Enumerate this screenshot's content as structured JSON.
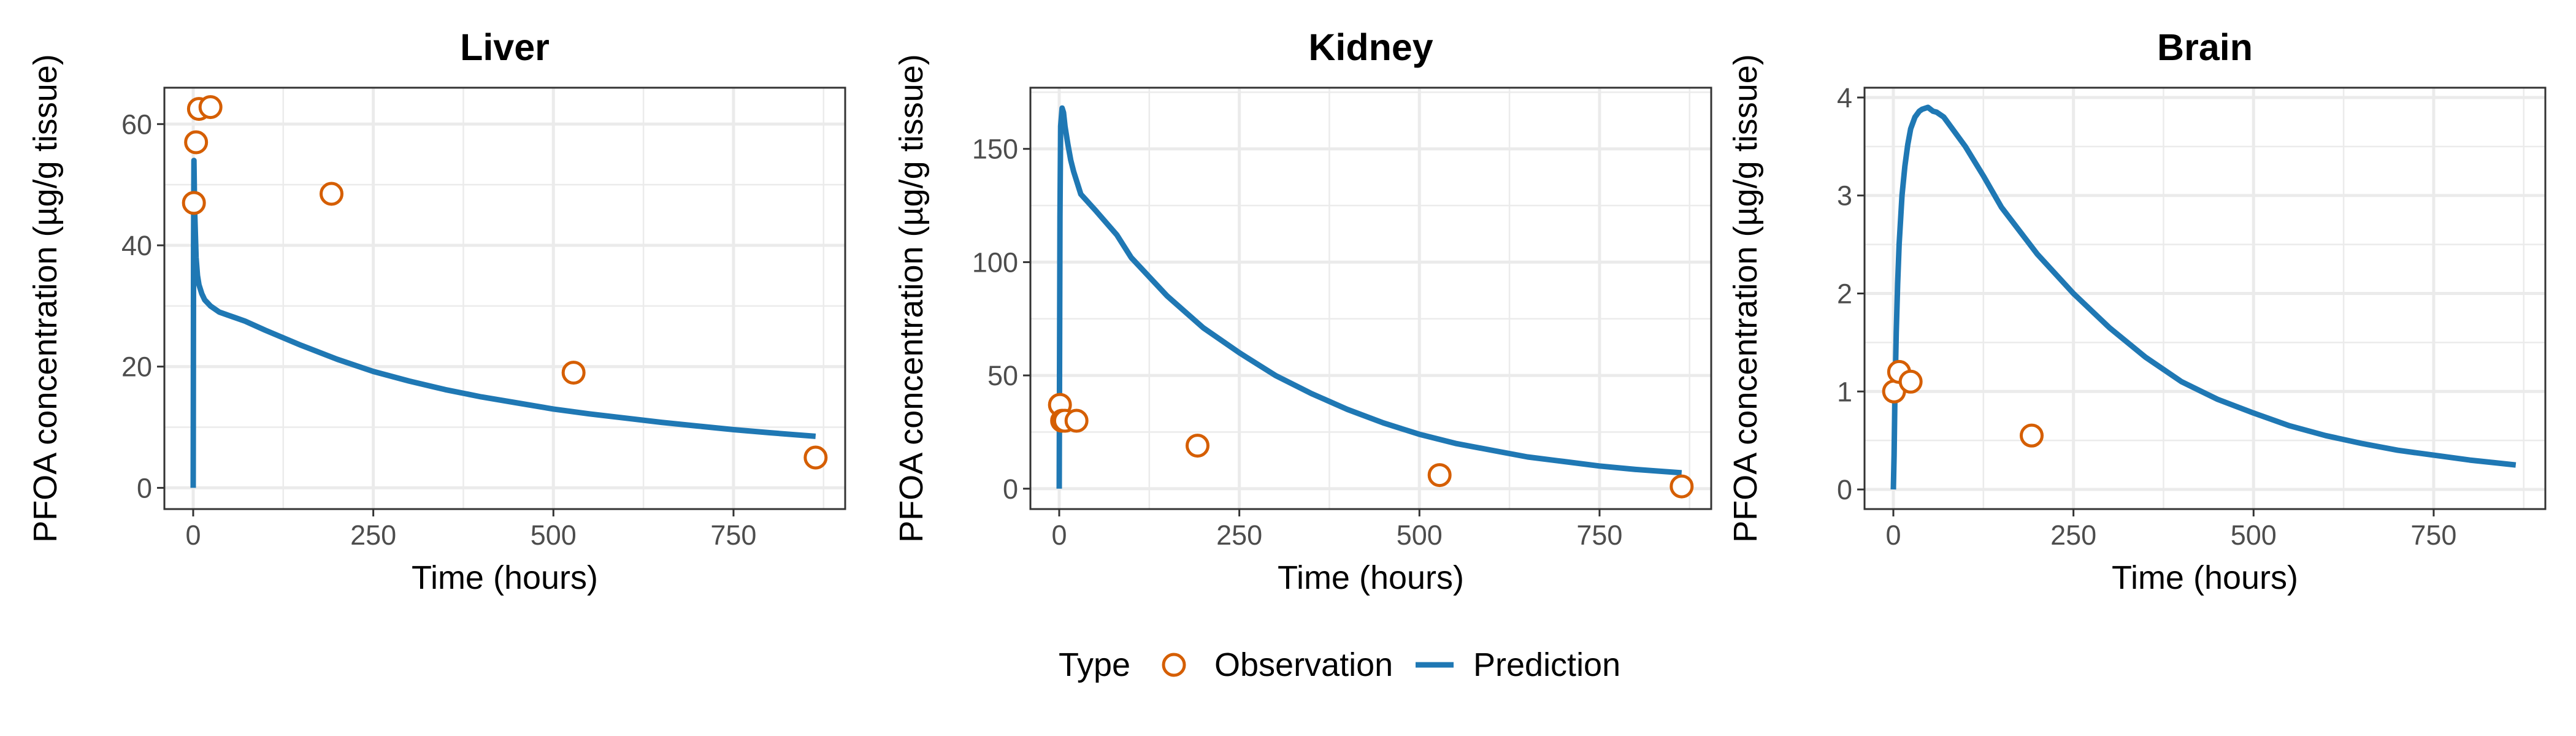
{
  "legend": {
    "title": "Type",
    "items": [
      {
        "label": "Observation",
        "kind": "point",
        "color": "#D55E00"
      },
      {
        "label": "Prediction",
        "kind": "line",
        "color": "#1F78B4"
      }
    ]
  },
  "colors": {
    "observation": "#D55E00",
    "prediction": "#1F78B4",
    "grid": "#ebebeb",
    "panel_border": "#333333"
  },
  "chart_data": [
    {
      "type": "line",
      "title": "Liver",
      "xlabel": "Time (hours)",
      "ylabel": "PFOA concentration (µg/g tissue)",
      "xlim": [
        -40,
        905
      ],
      "ylim": [
        -3.5,
        66
      ],
      "xticks": [
        0,
        250,
        500,
        750
      ],
      "yticks": [
        0,
        20,
        40,
        60
      ],
      "tick_labels_x": [
        "0",
        "250",
        "500",
        "750"
      ],
      "tick_labels_y": [
        "0",
        "20",
        "40",
        "60"
      ],
      "grid": true,
      "series": [
        {
          "name": "Prediction",
          "x": [
            0,
            0.5,
            1,
            2,
            4,
            6,
            8,
            12,
            16,
            20,
            24,
            36,
            48,
            72,
            100,
            150,
            200,
            250,
            300,
            350,
            400,
            450,
            500,
            550,
            600,
            650,
            700,
            750,
            800,
            864
          ],
          "y": [
            0,
            40,
            54,
            46,
            38,
            35,
            33.5,
            32,
            31,
            30.5,
            30,
            29,
            28.5,
            27.5,
            26,
            23.5,
            21.2,
            19.2,
            17.6,
            16.2,
            15,
            14,
            13,
            12.2,
            11.5,
            10.8,
            10.2,
            9.6,
            9.1,
            8.5
          ]
        },
        {
          "name": "Observation",
          "x": [
            1,
            4,
            8,
            24,
            192,
            528,
            864
          ],
          "y": [
            47,
            57,
            62.5,
            62.8,
            48.5,
            19,
            5
          ]
        }
      ]
    },
    {
      "type": "line",
      "title": "Kidney",
      "xlabel": "Time (hours)",
      "ylabel": "PFOA concentration (µg/g tissue)",
      "xlim": [
        -40,
        905
      ],
      "ylim": [
        -9,
        177
      ],
      "xticks": [
        0,
        250,
        500,
        750
      ],
      "yticks": [
        0,
        50,
        100,
        150
      ],
      "tick_labels_x": [
        "0",
        "250",
        "500",
        "750"
      ],
      "tick_labels_y": [
        "0",
        "50",
        "100",
        "150"
      ],
      "grid": true,
      "series": [
        {
          "name": "Prediction",
          "x": [
            0,
            1,
            2,
            4,
            6,
            8,
            12,
            16,
            20,
            30,
            50,
            80,
            100,
            150,
            200,
            250,
            300,
            350,
            400,
            450,
            500,
            550,
            600,
            650,
            700,
            750,
            800,
            864
          ],
          "y": [
            0,
            120,
            160,
            168,
            166,
            160,
            152,
            145,
            140,
            130,
            123,
            112,
            102,
            85,
            71,
            60,
            50,
            42,
            35,
            29,
            24,
            20,
            17,
            14,
            12,
            10,
            8.5,
            7
          ]
        },
        {
          "name": "Observation",
          "x": [
            1,
            4,
            8,
            24,
            192,
            528,
            864
          ],
          "y": [
            37,
            30,
            30,
            30,
            19,
            6,
            1
          ]
        }
      ]
    },
    {
      "type": "line",
      "title": "Brain",
      "xlabel": "Time (hours)",
      "ylabel": "PFOA concentration (µg/g tissue)",
      "xlim": [
        -40,
        905
      ],
      "ylim": [
        -0.2,
        4.1
      ],
      "xticks": [
        0,
        250,
        500,
        750
      ],
      "yticks": [
        0,
        1,
        2,
        3,
        4
      ],
      "tick_labels_x": [
        "0",
        "250",
        "500",
        "750"
      ],
      "tick_labels_y": [
        "0",
        "1",
        "2",
        "3",
        "4"
      ],
      "grid": true,
      "series": [
        {
          "name": "Prediction",
          "x": [
            0,
            1,
            2,
            4,
            6,
            8,
            12,
            16,
            20,
            24,
            30,
            36,
            40,
            48,
            55,
            60,
            70,
            80,
            100,
            125,
            150,
            200,
            250,
            300,
            350,
            400,
            450,
            500,
            550,
            600,
            650,
            700,
            750,
            800,
            864
          ],
          "y": [
            0,
            0.35,
            0.85,
            1.6,
            2.1,
            2.5,
            3.0,
            3.3,
            3.52,
            3.68,
            3.8,
            3.86,
            3.88,
            3.9,
            3.86,
            3.85,
            3.8,
            3.7,
            3.5,
            3.2,
            2.88,
            2.4,
            2.0,
            1.65,
            1.35,
            1.1,
            0.92,
            0.78,
            0.65,
            0.55,
            0.47,
            0.4,
            0.35,
            0.3,
            0.25
          ]
        },
        {
          "name": "Observation",
          "x": [
            1,
            8,
            24,
            192
          ],
          "y": [
            1.0,
            1.2,
            1.1,
            0.55
          ]
        }
      ]
    }
  ]
}
